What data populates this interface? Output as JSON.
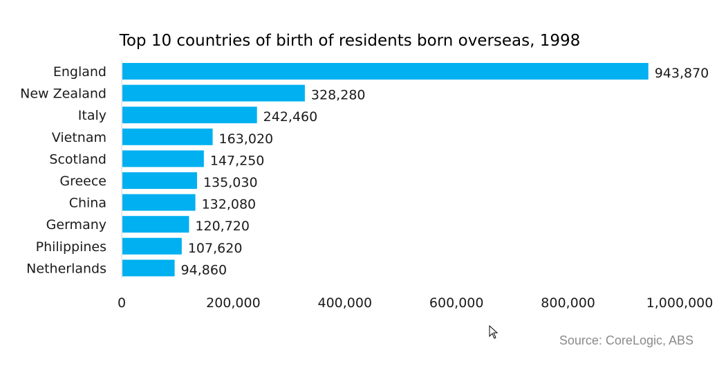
{
  "chart_data": {
    "type": "bar",
    "orientation": "horizontal",
    "title": "Top 10 countries of birth of residents born overseas, 1998",
    "categories": [
      "England",
      "New Zealand",
      "Italy",
      "Vietnam",
      "Scotland",
      "Greece",
      "China",
      "Germany",
      "Philippines",
      "Netherlands"
    ],
    "values": [
      943870,
      328280,
      242460,
      163020,
      147250,
      135030,
      132080,
      120720,
      107620,
      94860
    ],
    "data_labels": [
      "943,870",
      "328,280",
      "242,460",
      "163,020",
      "147,250",
      "135,030",
      "132,080",
      "120,720",
      "107,620",
      "94,860"
    ],
    "xlim": [
      0,
      1000000
    ],
    "x_ticks": [
      0,
      200000,
      400000,
      600000,
      800000,
      1000000
    ],
    "x_tick_labels": [
      "0",
      "200,000",
      "400,000",
      "600,000",
      "800,000",
      "1,000,000"
    ],
    "bar_color": "#00b0f0",
    "grid": false,
    "legend": "none"
  },
  "source": "Source: CoreLogic, ABS"
}
